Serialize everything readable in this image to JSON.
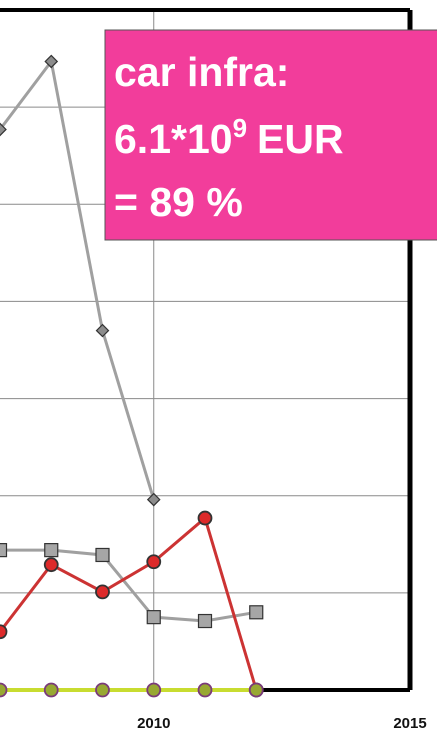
{
  "chart_data": {
    "type": "line",
    "x": [
      2007,
      2008,
      2009,
      2010,
      2011,
      2012
    ],
    "xlim": [
      2007,
      2015
    ],
    "xticks": [
      2010,
      2015
    ],
    "ylim": [
      0,
      7
    ],
    "yticks": [
      0,
      1,
      2,
      3,
      4,
      5,
      6
    ],
    "grid": true,
    "series": [
      {
        "color": "#a0a0a0",
        "marker": "diamond",
        "marker_color": "#8c8c8c",
        "values": [
          5.77,
          6.47,
          3.7,
          1.96,
          null,
          0
        ]
      },
      {
        "color": "#a0a0a0",
        "marker": "square",
        "marker_color": "#a6a6a6",
        "values": [
          1.44,
          1.44,
          1.39,
          0.75,
          0.71,
          0.8
        ]
      },
      {
        "color": "#cc3333",
        "marker": "circle",
        "marker_color": "#dd2a2a",
        "values": [
          0.6,
          1.29,
          1.01,
          1.32,
          1.77,
          0
        ]
      },
      {
        "color": "#c8dc30",
        "marker": "circle",
        "marker_color": "#98a832",
        "values": [
          0,
          0,
          0,
          0,
          0,
          0
        ]
      }
    ],
    "annotation": {
      "line1": "car infra:",
      "line2": "6.1*10",
      "exponent": "9",
      "line2_end": "EUR",
      "line3": "= 89 %"
    }
  }
}
